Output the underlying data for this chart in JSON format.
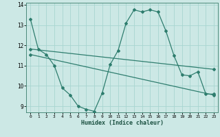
{
  "title": "",
  "xlabel": "Humidex (Indice chaleur)",
  "bg_color": "#cce8e5",
  "line_color": "#2e7d6e",
  "grid_color": "#a8d5d0",
  "xlim": [
    -0.5,
    23.5
  ],
  "ylim": [
    8.7,
    14.1
  ],
  "yticks": [
    9,
    10,
    11,
    12,
    13,
    14
  ],
  "xticks": [
    0,
    1,
    2,
    3,
    4,
    5,
    6,
    7,
    8,
    9,
    10,
    11,
    12,
    13,
    14,
    15,
    16,
    17,
    18,
    19,
    20,
    21,
    22,
    23
  ],
  "wavy_x": [
    0,
    1,
    2,
    3,
    4,
    5,
    6,
    7,
    8,
    9,
    10,
    11,
    12,
    13,
    14,
    15,
    16,
    17,
    18,
    19,
    20,
    21,
    22,
    23
  ],
  "wavy_y": [
    13.3,
    11.8,
    11.55,
    11.0,
    9.9,
    9.55,
    9.0,
    8.85,
    8.75,
    9.65,
    11.05,
    11.75,
    13.1,
    13.75,
    13.65,
    13.75,
    13.65,
    12.7,
    11.5,
    10.55,
    10.5,
    10.7,
    9.6,
    9.6
  ],
  "line1_x": [
    0,
    23
  ],
  "line1_y": [
    11.82,
    10.82
  ],
  "line2_x": [
    0,
    23
  ],
  "line2_y": [
    11.55,
    9.55
  ],
  "marker": "D",
  "markersize": 2.0,
  "linewidth": 0.9
}
